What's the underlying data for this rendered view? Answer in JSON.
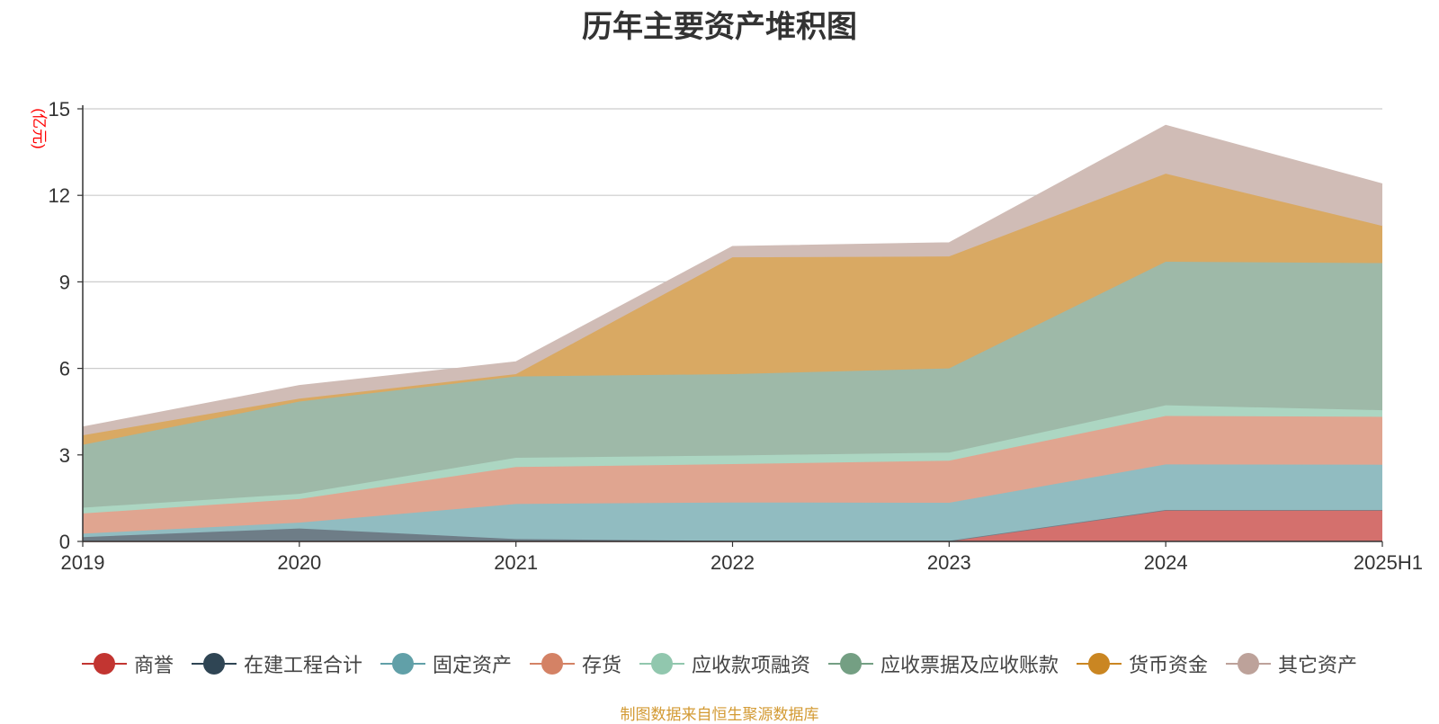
{
  "title": "历年主要资产堆积图",
  "source_note": "制图数据来自恒生聚源数据库",
  "chart_data": {
    "type": "area",
    "stacked": true,
    "title": "历年主要资产堆积图",
    "ylabel": "(亿元)",
    "xlabel": "",
    "ylim": [
      0,
      15
    ],
    "yticks": [
      0,
      3,
      6,
      9,
      12,
      15
    ],
    "grid": true,
    "legend_position": "bottom",
    "categories": [
      "2019",
      "2020",
      "2021",
      "2022",
      "2023",
      "2024",
      "2025H1"
    ],
    "series": [
      {
        "name": "商誉",
        "color": "#c23531",
        "fill": "#d4706d",
        "values": [
          0,
          0,
          0,
          0,
          0,
          1.08,
          1.08
        ]
      },
      {
        "name": "在建工程合计",
        "color": "#2f4554",
        "fill": "#6e7d87",
        "values": [
          0.15,
          0.45,
          0.08,
          0.02,
          0.02,
          0.01,
          0.01
        ]
      },
      {
        "name": "固定资产",
        "color": "#61a0a8",
        "fill": "#91bcc1",
        "values": [
          0.12,
          0.2,
          1.22,
          1.33,
          1.32,
          1.58,
          1.57
        ]
      },
      {
        "name": "存货",
        "color": "#d48265",
        "fill": "#e0a590",
        "values": [
          0.7,
          0.82,
          1.28,
          1.33,
          1.46,
          1.68,
          1.66
        ]
      },
      {
        "name": "应收款项融资",
        "color": "#91c7ae",
        "fill": "#acd6c2",
        "values": [
          0.2,
          0.18,
          0.32,
          0.3,
          0.28,
          0.37,
          0.23
        ]
      },
      {
        "name": "应收票据及应收账款",
        "color": "#749f83",
        "fill": "#9eb9a8",
        "values": [
          2.18,
          3.2,
          2.82,
          2.82,
          2.92,
          4.98,
          5.1
        ]
      },
      {
        "name": "货币资金",
        "color": "#ca8622",
        "fill": "#d9a963",
        "values": [
          0.33,
          0.1,
          0.08,
          4.05,
          3.88,
          3.05,
          1.29
        ]
      },
      {
        "name": "其它资产",
        "color": "#bda29a",
        "fill": "#d0bcb6",
        "values": [
          0.28,
          0.45,
          0.42,
          0.37,
          0.47,
          1.67,
          1.45
        ]
      }
    ]
  }
}
